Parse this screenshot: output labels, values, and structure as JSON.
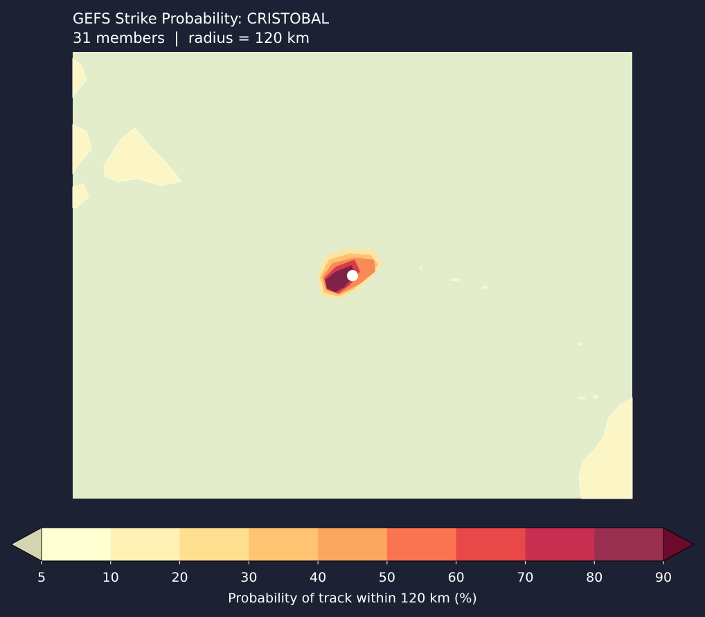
{
  "header": {
    "title": "GEFS Strike Probability: CRISTOBAL",
    "subtitle": "31 members  |  radius = 120 km"
  },
  "colorbar": {
    "label": "Probability of track within 120 km (%)",
    "ticks": [
      5,
      10,
      20,
      30,
      40,
      50,
      60,
      70,
      80,
      90
    ],
    "colors": [
      "#ffffd2",
      "#fff0b3",
      "#fedf8f",
      "#fec472",
      "#fca65f",
      "#fb7452",
      "#e84848",
      "#c72e50",
      "#9a3050"
    ],
    "under_color": "#d4d4b0",
    "over_color": "#6b0a2a"
  }
}
